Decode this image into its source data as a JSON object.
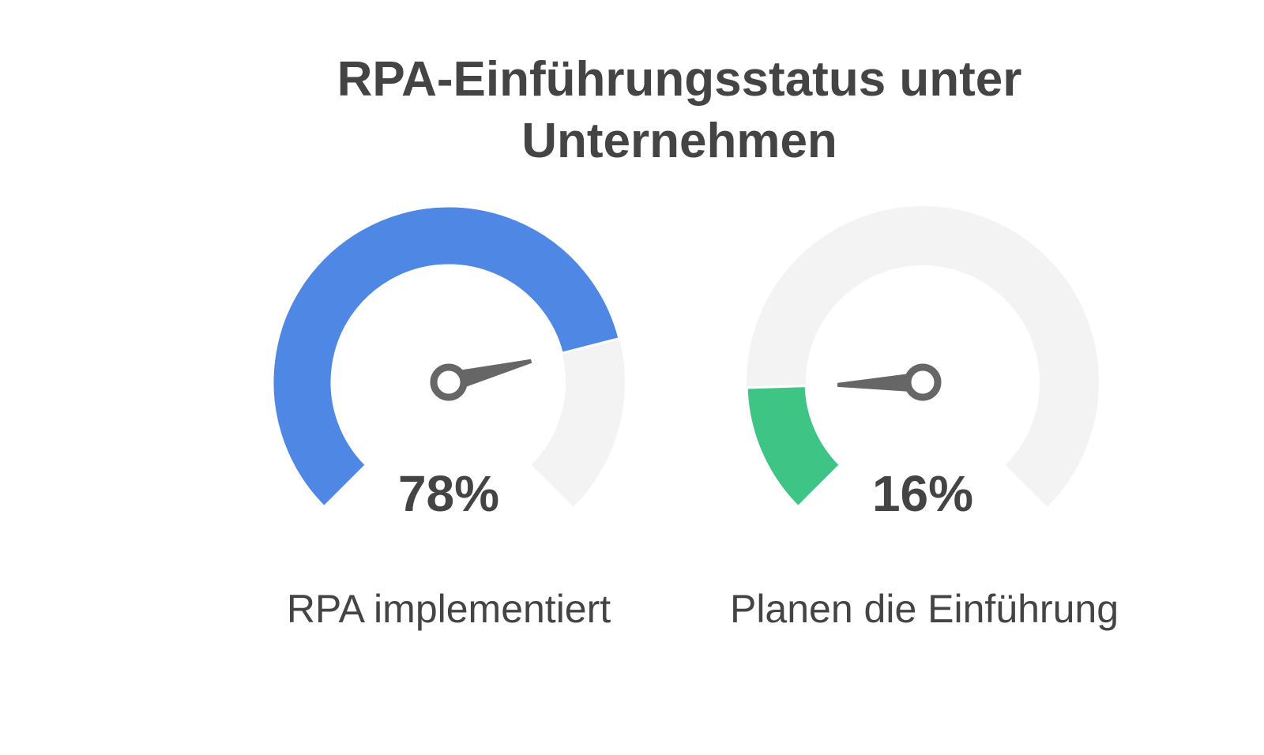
{
  "title": {
    "line1": "RPA-Einführungsstatus unter",
    "line2": "Unternehmen"
  },
  "chart_data": {
    "type": "gauge",
    "title": "RPA-Einführungsstatus unter Unternehmen",
    "range": [
      0,
      100
    ],
    "unit": "%",
    "track_color": "#f3f3f3",
    "needle_color": "#666666",
    "gauges": [
      {
        "label": "RPA implementiert",
        "value": 78,
        "value_text": "78%",
        "color": "#4f87e4"
      },
      {
        "label": "Planen die Einführung",
        "value": 16,
        "value_text": "16%",
        "color": "#3ec585"
      }
    ]
  }
}
